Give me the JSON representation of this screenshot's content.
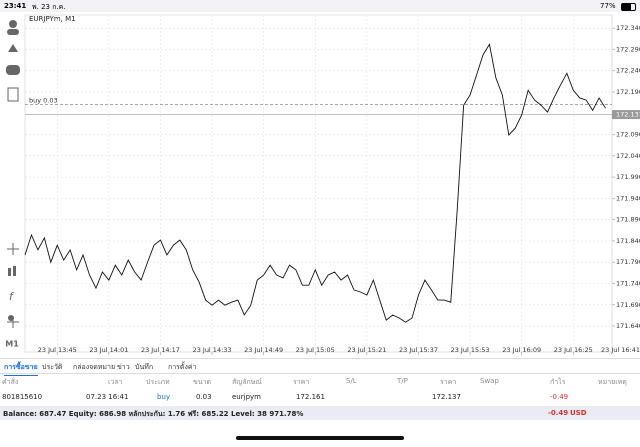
{
  "status_bar": {
    "time": "23:41",
    "date": "พ. 23 ก.ค.",
    "battery": "77%"
  },
  "chart_data": {
    "type": "line",
    "title": "EURJPYm, M1",
    "x": [
      815,
      817,
      819,
      821,
      823,
      825,
      827,
      829,
      831,
      833,
      835,
      837,
      839,
      841,
      843,
      845,
      847,
      849,
      851,
      853,
      855,
      857,
      859,
      861,
      863,
      865,
      867,
      869,
      871,
      873,
      875,
      877,
      879,
      881,
      883,
      885,
      887,
      889,
      891,
      893,
      895,
      897,
      899,
      901,
      903,
      905,
      907,
      909,
      911,
      913,
      915,
      917,
      919,
      921,
      923,
      925,
      927,
      929,
      931,
      933,
      935,
      937,
      939,
      941,
      943,
      945,
      947,
      949,
      951,
      953,
      955,
      957,
      959,
      961,
      963,
      965,
      967,
      969,
      971,
      973,
      975,
      977,
      979,
      981,
      983,
      985,
      987,
      989,
      991,
      993,
      995
    ],
    "series": [
      {
        "name": "EURJPYm",
        "color": "#111111",
        "values": [
          171.807,
          171.854,
          171.819,
          171.847,
          171.79,
          171.83,
          171.795,
          171.819,
          171.772,
          171.807,
          171.76,
          171.729,
          171.767,
          171.748,
          171.783,
          171.76,
          171.795,
          171.767,
          171.748,
          171.79,
          171.83,
          171.842,
          171.807,
          171.83,
          171.842,
          171.819,
          171.772,
          171.743,
          171.701,
          171.689,
          171.701,
          171.689,
          171.696,
          171.701,
          171.666,
          171.689,
          171.748,
          171.76,
          171.783,
          171.76,
          171.753,
          171.783,
          171.772,
          171.736,
          171.736,
          171.772,
          171.736,
          171.76,
          171.767,
          171.748,
          171.76,
          171.725,
          171.72,
          171.713,
          171.748,
          171.701,
          171.654,
          171.666,
          171.659,
          171.649,
          171.659,
          171.713,
          171.748,
          171.725,
          171.701,
          171.701,
          171.696,
          171.912,
          172.159,
          172.183,
          172.23,
          172.277,
          172.302,
          172.223,
          172.183,
          172.089,
          172.105,
          172.136,
          172.194,
          172.171,
          172.159,
          172.143,
          172.176,
          172.206,
          172.234,
          172.194,
          172.176,
          172.171,
          172.147,
          172.176,
          172.152
        ]
      }
    ],
    "xlim": [
      815,
      997
    ],
    "xticks": [
      {
        "value": 825,
        "label": "23 Jul 13:45"
      },
      {
        "value": 841,
        "label": "23 Jul 14:01"
      },
      {
        "value": 857,
        "label": "23 Jul 14:17"
      },
      {
        "value": 873,
        "label": "23 Jul 14:33"
      },
      {
        "value": 889,
        "label": "23 Jul 14:49"
      },
      {
        "value": 905,
        "label": "23 Jul 15:05"
      },
      {
        "value": 921,
        "label": "23 Jul 15:21"
      },
      {
        "value": 937,
        "label": "23 Jul 15:37"
      },
      {
        "value": 953,
        "label": "23 Jul 15:53"
      },
      {
        "value": 969,
        "label": "23 Jul 16:09"
      },
      {
        "value": 985,
        "label": "23 Jul 16:25"
      },
      {
        "value": 1001,
        "label": "23 Jul 16:41"
      }
    ],
    "ylim": [
      171.579,
      172.371
    ],
    "yticks": [
      {
        "value": 172.34,
        "label": "172.340"
      },
      {
        "value": 172.29,
        "label": "172.290"
      },
      {
        "value": 172.24,
        "label": "172.240"
      },
      {
        "value": 172.19,
        "label": "172.190"
      },
      {
        "value": 172.09,
        "label": "172.090"
      },
      {
        "value": 172.04,
        "label": "172.040"
      },
      {
        "value": 171.99,
        "label": "171.990"
      },
      {
        "value": 171.94,
        "label": "171.940"
      },
      {
        "value": 171.89,
        "label": "171.890"
      },
      {
        "value": 171.84,
        "label": "171.840"
      },
      {
        "value": 171.79,
        "label": "171.790"
      },
      {
        "value": 171.74,
        "label": "171.740"
      },
      {
        "value": 171.69,
        "label": "171.690"
      },
      {
        "value": 171.64,
        "label": "171.640"
      }
    ],
    "grid": true,
    "current_price": 172.137,
    "order": {
      "label": "buy 0.03",
      "price": 172.161
    },
    "timeframe": "M1"
  },
  "tabs": [
    "การซื้อขาย",
    "ประวัติ",
    "กล่องจดหมาย",
    "ข่าว",
    "บันทึก",
    "การตั้งค่า"
  ],
  "table": {
    "columns": [
      "คำสั่ง",
      "เวลา",
      "ประเภท",
      "ขนาด",
      "สัญลักษณ์",
      "ราคา",
      "S/L",
      "T/P",
      "ราคา",
      "Swap",
      "กำไร",
      "หมายเหตุ"
    ],
    "rows": [
      [
        "801815610",
        "07.23 16:41",
        "buy",
        "0.03",
        "eurjpym",
        "172.161",
        null,
        null,
        "172.137",
        null,
        "-0.49",
        null
      ]
    ]
  },
  "footer": {
    "summary": "Balance: 687.47 Equity: 686.98 หลักประกัน: 1.76 ฟรี: 685.22 Level: 38 971.78%",
    "profit": "-0.49",
    "currency": "USD"
  }
}
